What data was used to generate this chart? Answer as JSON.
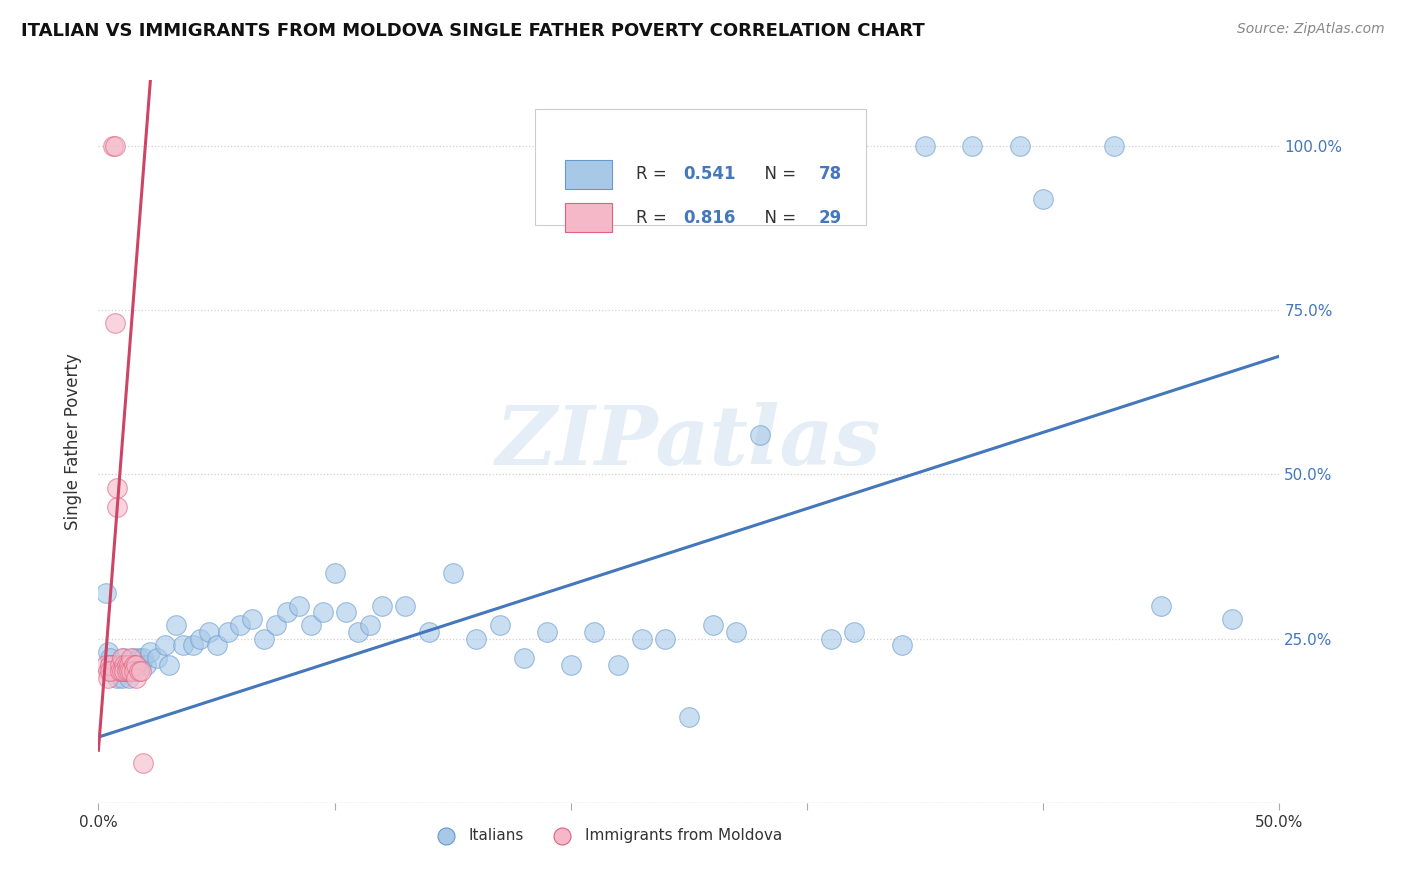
{
  "title": "ITALIAN VS IMMIGRANTS FROM MOLDOVA SINGLE FATHER POVERTY CORRELATION CHART",
  "source": "Source: ZipAtlas.com",
  "ylabel": "Single Father Poverty",
  "blue_R": "0.541",
  "blue_N": "78",
  "pink_R": "0.816",
  "pink_N": "29",
  "blue_color": "#a8c8e8",
  "pink_color": "#f4b8c8",
  "blue_edge_color": "#6699cc",
  "pink_edge_color": "#e06080",
  "blue_line_color": "#4477bb",
  "pink_line_color": "#cc4466",
  "text_color": "#333333",
  "right_axis_color": "#4477bb",
  "grid_color": "#cccccc",
  "watermark_color": "#ccddee",
  "background_color": "#ffffff",
  "watermark": "ZIPatlas",
  "xlim": [
    0.0,
    0.5
  ],
  "ylim": [
    0.0,
    1.1
  ],
  "blue_line_x0": 0.0,
  "blue_line_y0": 0.1,
  "blue_line_x1": 0.5,
  "blue_line_y1": 0.68,
  "pink_line_x0": 0.0,
  "pink_line_y0": 0.08,
  "pink_line_x1": 0.022,
  "pink_line_y1": 1.1,
  "blue_x": [
    0.003,
    0.004,
    0.005,
    0.005,
    0.006,
    0.006,
    0.007,
    0.007,
    0.008,
    0.008,
    0.009,
    0.009,
    0.01,
    0.01,
    0.011,
    0.011,
    0.012,
    0.012,
    0.013,
    0.013,
    0.014,
    0.015,
    0.015,
    0.016,
    0.017,
    0.018,
    0.019,
    0.02,
    0.022,
    0.025,
    0.028,
    0.03,
    0.033,
    0.036,
    0.04,
    0.043,
    0.047,
    0.05,
    0.055,
    0.06,
    0.065,
    0.07,
    0.075,
    0.08,
    0.085,
    0.09,
    0.095,
    0.1,
    0.105,
    0.11,
    0.115,
    0.12,
    0.13,
    0.14,
    0.15,
    0.16,
    0.17,
    0.18,
    0.19,
    0.2,
    0.21,
    0.22,
    0.23,
    0.24,
    0.25,
    0.26,
    0.27,
    0.28,
    0.31,
    0.32,
    0.34,
    0.35,
    0.37,
    0.39,
    0.4,
    0.43,
    0.45,
    0.48
  ],
  "blue_y": [
    0.32,
    0.23,
    0.22,
    0.21,
    0.21,
    0.2,
    0.21,
    0.2,
    0.2,
    0.19,
    0.21,
    0.2,
    0.2,
    0.19,
    0.22,
    0.21,
    0.21,
    0.2,
    0.2,
    0.19,
    0.21,
    0.22,
    0.21,
    0.21,
    0.22,
    0.21,
    0.22,
    0.21,
    0.23,
    0.22,
    0.24,
    0.21,
    0.27,
    0.24,
    0.24,
    0.25,
    0.26,
    0.24,
    0.26,
    0.27,
    0.28,
    0.25,
    0.27,
    0.29,
    0.3,
    0.27,
    0.29,
    0.35,
    0.29,
    0.26,
    0.27,
    0.3,
    0.3,
    0.26,
    0.35,
    0.25,
    0.27,
    0.22,
    0.26,
    0.21,
    0.26,
    0.21,
    0.25,
    0.25,
    0.13,
    0.27,
    0.26,
    0.56,
    0.25,
    0.26,
    0.24,
    1.0,
    1.0,
    1.0,
    0.92,
    1.0,
    0.3,
    0.28
  ],
  "pink_x": [
    0.003,
    0.004,
    0.004,
    0.005,
    0.005,
    0.006,
    0.007,
    0.007,
    0.008,
    0.008,
    0.009,
    0.009,
    0.01,
    0.01,
    0.011,
    0.011,
    0.012,
    0.012,
    0.013,
    0.013,
    0.014,
    0.014,
    0.015,
    0.015,
    0.016,
    0.016,
    0.017,
    0.018,
    0.019
  ],
  "pink_y": [
    0.21,
    0.2,
    0.19,
    0.21,
    0.2,
    1.0,
    1.0,
    0.73,
    0.45,
    0.48,
    0.21,
    0.2,
    0.22,
    0.2,
    0.21,
    0.2,
    0.21,
    0.2,
    0.21,
    0.2,
    0.22,
    0.2,
    0.21,
    0.2,
    0.21,
    0.19,
    0.2,
    0.2,
    0.06
  ]
}
